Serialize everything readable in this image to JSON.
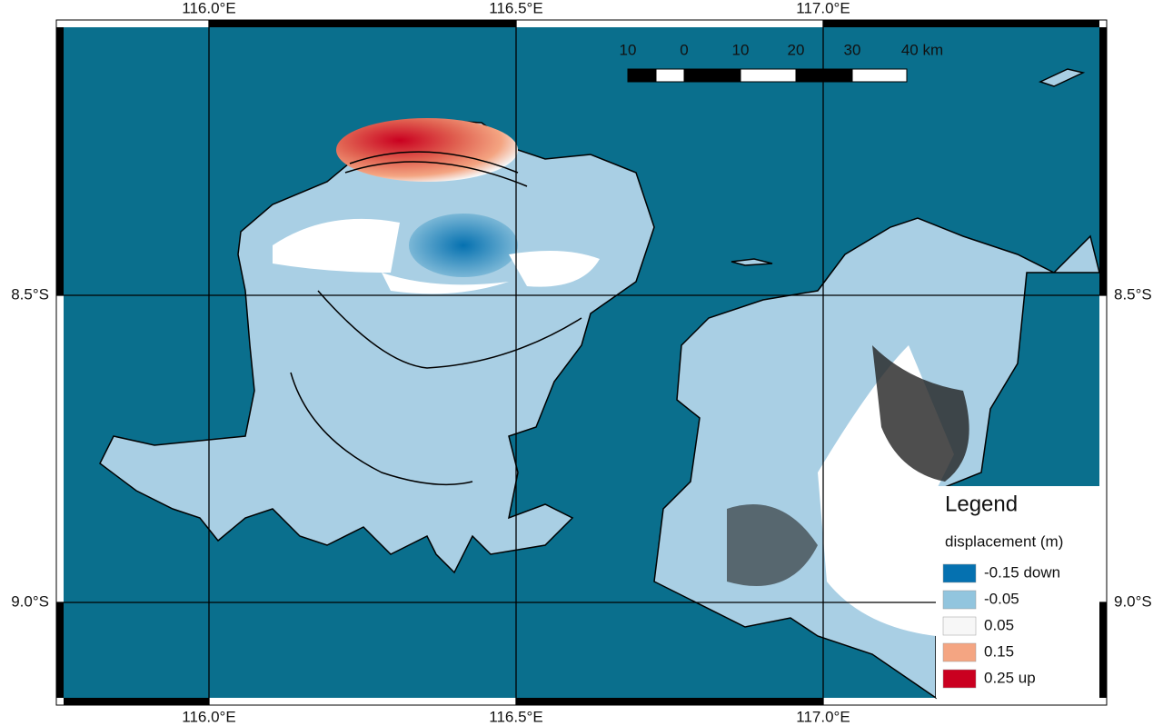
{
  "map": {
    "lon_labels": [
      "116.0°E",
      "116.5°E",
      "117.0°E"
    ],
    "lat_labels": [
      "8.5°S",
      "9.0°S"
    ],
    "scale_bar": [
      "10",
      "0",
      "10",
      "20",
      "30",
      "40 km"
    ],
    "legend": {
      "title": "Legend",
      "subtitle": "displacement (m)",
      "entries": [
        {
          "label": "-0.15 down",
          "color": "#0571b0"
        },
        {
          "label": "-0.05",
          "color": "#92c5de"
        },
        {
          "label": "0.05",
          "color": "#f7f7f7"
        },
        {
          "label": "0.15",
          "color": "#f4a582"
        },
        {
          "label": "0.25 up",
          "color": "#ca0020"
        }
      ]
    }
  }
}
